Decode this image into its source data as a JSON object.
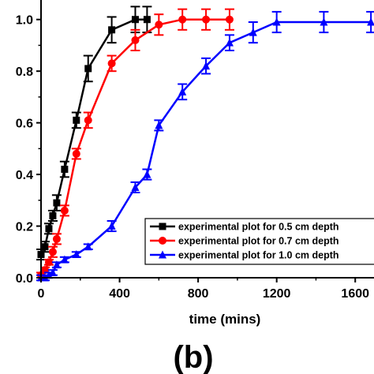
{
  "chart_data": {
    "type": "line",
    "xlabel": "time (mins)",
    "ylabel": "",
    "xlim": [
      0,
      1800
    ],
    "ylim": [
      0,
      1.1
    ],
    "x_ticks": [
      "0",
      "400",
      "800",
      "1200",
      "1600"
    ],
    "y_ticks": [
      "0.0",
      "0.2",
      "0.4",
      "0.6",
      "0.8",
      "1.0"
    ],
    "x_tick_values": [
      0,
      400,
      800,
      1200,
      1600
    ],
    "y_tick_values": [
      0.0,
      0.2,
      0.4,
      0.6,
      0.8,
      1.0
    ],
    "panel_label": "(b)",
    "legend_position": "bottom-right",
    "grid": false,
    "series": [
      {
        "name": "experimental plot for 0.5 cm depth",
        "color": "#000000",
        "marker": "square",
        "x": [
          0,
          20,
          40,
          60,
          80,
          120,
          180,
          240,
          360,
          480,
          540
        ],
        "y": [
          0.09,
          0.12,
          0.19,
          0.24,
          0.29,
          0.42,
          0.61,
          0.81,
          0.96,
          1.0,
          1.0
        ],
        "err": [
          0.02,
          0.02,
          0.02,
          0.02,
          0.03,
          0.03,
          0.03,
          0.05,
          0.05,
          0.05,
          0.05
        ]
      },
      {
        "name": "experimental plot for 0.7 cm depth",
        "color": "#ff0000",
        "marker": "circle",
        "x": [
          0,
          20,
          40,
          60,
          80,
          120,
          180,
          240,
          360,
          480,
          600,
          720,
          840,
          960
        ],
        "y": [
          0.01,
          0.03,
          0.06,
          0.1,
          0.15,
          0.26,
          0.48,
          0.61,
          0.83,
          0.92,
          0.98,
          1.0,
          1.0,
          1.0
        ],
        "err": [
          0.01,
          0.01,
          0.01,
          0.02,
          0.02,
          0.02,
          0.02,
          0.03,
          0.03,
          0.04,
          0.04,
          0.04,
          0.04,
          0.04
        ]
      },
      {
        "name": "experimental plot for 1.0 cm depth",
        "color": "#0000ff",
        "marker": "triangle",
        "x": [
          0,
          20,
          40,
          60,
          80,
          120,
          180,
          240,
          360,
          480,
          540,
          600,
          720,
          840,
          960,
          1080,
          1200,
          1440,
          1680
        ],
        "y": [
          0.0,
          0.0,
          0.01,
          0.02,
          0.05,
          0.07,
          0.09,
          0.12,
          0.2,
          0.35,
          0.4,
          0.59,
          0.72,
          0.82,
          0.91,
          0.95,
          0.99,
          0.99,
          0.99
        ],
        "err": [
          0.01,
          0.01,
          0.01,
          0.01,
          0.01,
          0.01,
          0.01,
          0.01,
          0.02,
          0.02,
          0.02,
          0.02,
          0.03,
          0.03,
          0.03,
          0.04,
          0.04,
          0.04,
          0.04
        ]
      }
    ]
  }
}
